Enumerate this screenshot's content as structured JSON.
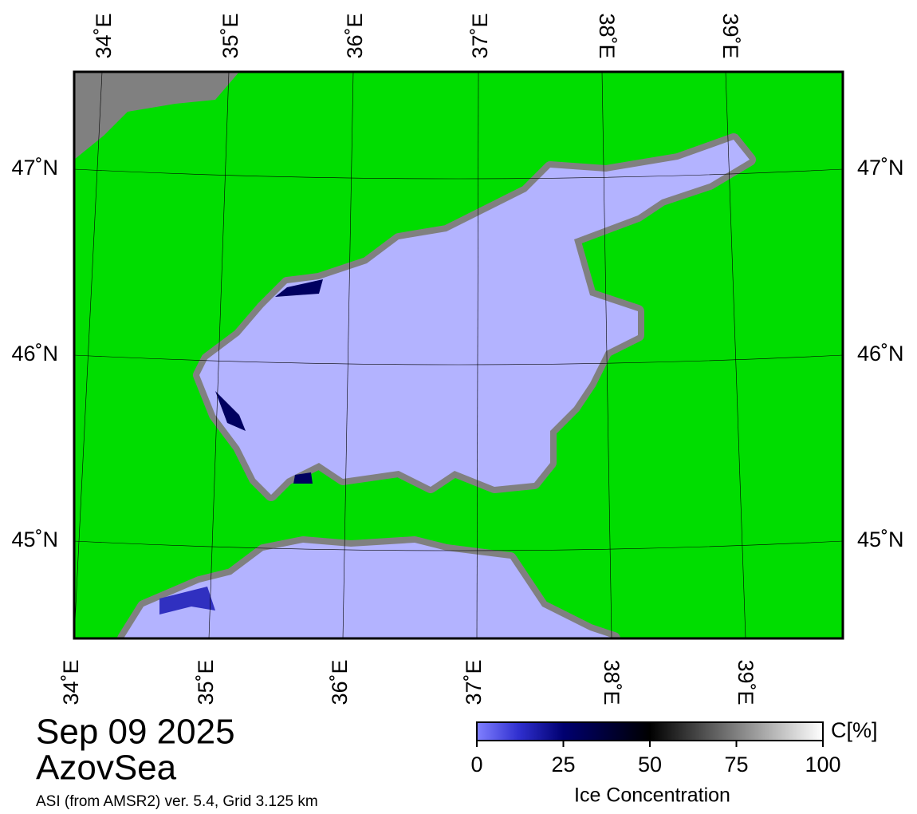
{
  "map": {
    "top_labels": [
      "34˚E",
      "35˚E",
      "36˚E",
      "37˚E",
      "38˚E",
      "39˚E"
    ],
    "bottom_labels": [
      "34˚E",
      "35˚E",
      "36˚E",
      "37˚E",
      "38˚E",
      "39˚E"
    ],
    "left_labels": [
      "47˚N",
      "46˚N",
      "45˚N"
    ],
    "right_labels": [
      "47˚N",
      "46˚N",
      "45˚N"
    ]
  },
  "caption": {
    "date": "Sep 09 2025",
    "region": "AzovSea",
    "source": "ASI (from AMSR2) ver. 5.4,  Grid 3.125 km"
  },
  "colorbar": {
    "range": [
      0,
      100
    ],
    "ticks": [
      0,
      25,
      50,
      75,
      100
    ],
    "unit": "C[%]",
    "label": "Ice Concentration"
  }
}
